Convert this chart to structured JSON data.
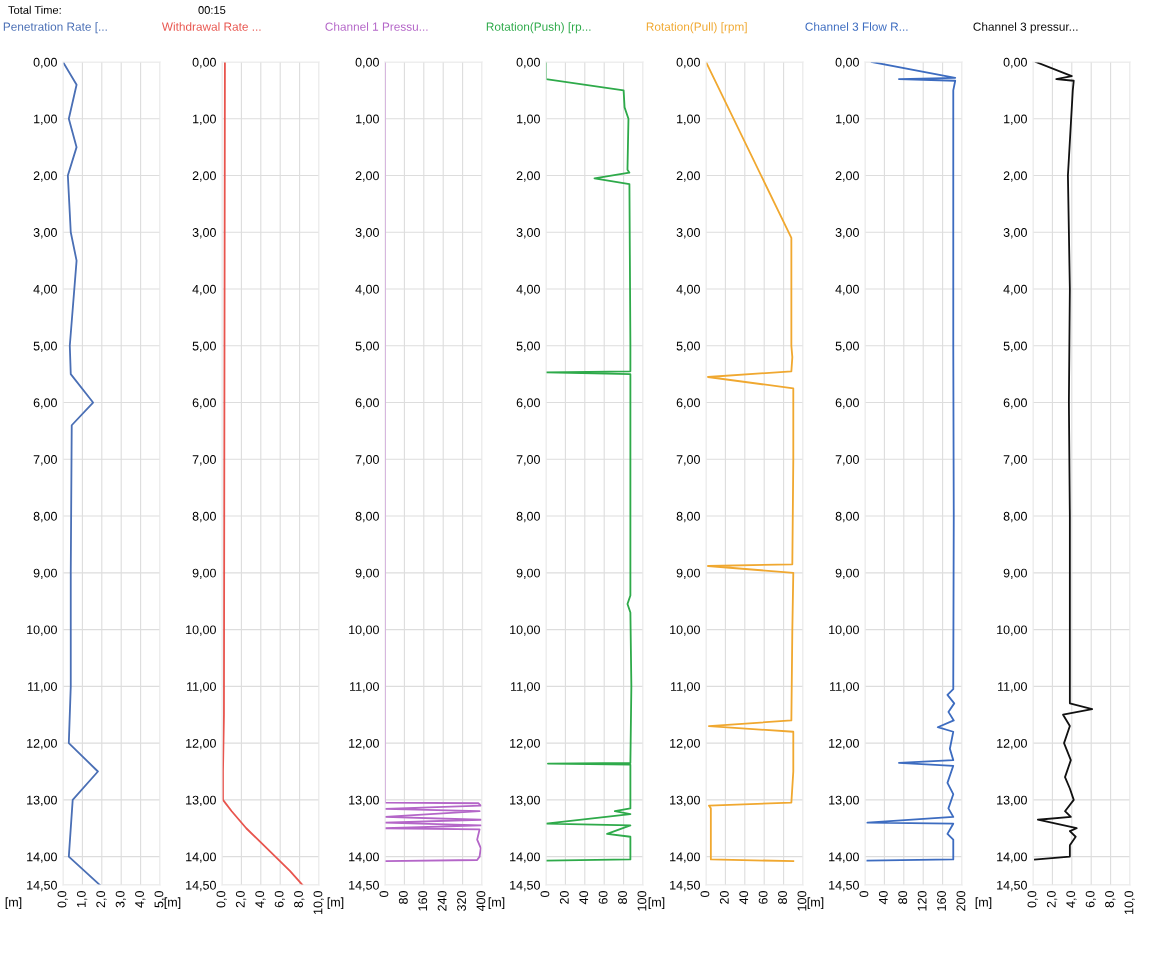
{
  "chart_data": [
    {
      "type": "line",
      "title": "Penetration Rate [...",
      "ylabel": "[m]",
      "annotations": [
        "Total Time:",
        "00:15"
      ],
      "grid": true,
      "marker": "none",
      "line_style": "solid",
      "xlim": [
        0,
        5
      ],
      "xticks": [
        {
          "value": 0,
          "label": "0,0"
        },
        {
          "value": 1,
          "label": "1,0"
        },
        {
          "value": 2,
          "label": "2,0"
        },
        {
          "value": 3,
          "label": "3,0"
        },
        {
          "value": 4,
          "label": "4,0"
        },
        {
          "value": 5,
          "label": "5,0"
        }
      ],
      "ylim": [
        14.5,
        0
      ],
      "yticks": [
        {
          "value": 0,
          "label": "0,00"
        },
        {
          "value": 1,
          "label": "1,00"
        },
        {
          "value": 2,
          "label": "2,00"
        },
        {
          "value": 3,
          "label": "3,00"
        },
        {
          "value": 4,
          "label": "4,00"
        },
        {
          "value": 5,
          "label": "5,00"
        },
        {
          "value": 6,
          "label": "6,00"
        },
        {
          "value": 7,
          "label": "7,00"
        },
        {
          "value": 8,
          "label": "8,00"
        },
        {
          "value": 9,
          "label": "9,00"
        },
        {
          "value": 10,
          "label": "10,00"
        },
        {
          "value": 11,
          "label": "11,00"
        },
        {
          "value": 12,
          "label": "12,00"
        },
        {
          "value": 13,
          "label": "13,00"
        },
        {
          "value": 14,
          "label": "14,00"
        },
        {
          "value": 14.5,
          "label": "14,50"
        }
      ],
      "series": [
        {
          "color": "#4a6fb5",
          "x": [
            0.0,
            0.7,
            0.3,
            0.7,
            0.25,
            0.4,
            0.7,
            0.35,
            0.4,
            1.55,
            0.45,
            0.4,
            0.4,
            0.3,
            1.8,
            0.5,
            0.3,
            1.9
          ],
          "values": [
            0,
            0.4,
            1.0,
            1.5,
            2.0,
            3.0,
            3.5,
            5.0,
            5.5,
            6.0,
            6.4,
            9.0,
            11.0,
            12.0,
            12.5,
            13.0,
            14.0,
            14.5
          ]
        }
      ]
    },
    {
      "type": "line",
      "title": "Withdrawal Rate ...",
      "ylabel": "[m]",
      "grid": true,
      "marker": "none",
      "line_style": "solid",
      "xlim": [
        0,
        10
      ],
      "xticks": [
        {
          "value": 0,
          "label": "0,0"
        },
        {
          "value": 2,
          "label": "2,0"
        },
        {
          "value": 4,
          "label": "4,0"
        },
        {
          "value": 6,
          "label": "6,0"
        },
        {
          "value": 8,
          "label": "8,0"
        },
        {
          "value": 10,
          "label": "10,0"
        }
      ],
      "ylim": [
        14.5,
        0
      ],
      "yticks": [
        {
          "value": 0,
          "label": "0,00"
        },
        {
          "value": 1,
          "label": "1,00"
        },
        {
          "value": 2,
          "label": "2,00"
        },
        {
          "value": 3,
          "label": "3,00"
        },
        {
          "value": 4,
          "label": "4,00"
        },
        {
          "value": 5,
          "label": "5,00"
        },
        {
          "value": 6,
          "label": "6,00"
        },
        {
          "value": 7,
          "label": "7,00"
        },
        {
          "value": 8,
          "label": "8,00"
        },
        {
          "value": 9,
          "label": "9,00"
        },
        {
          "value": 10,
          "label": "10,00"
        },
        {
          "value": 11,
          "label": "11,00"
        },
        {
          "value": 12,
          "label": "12,00"
        },
        {
          "value": 13,
          "label": "13,00"
        },
        {
          "value": 14,
          "label": "14,00"
        },
        {
          "value": 14.5,
          "label": "14,50"
        }
      ],
      "series": [
        {
          "color": "#e8554e",
          "x": [
            0.3,
            0.2,
            0.1,
            0.1,
            1.0,
            2.5,
            4.0,
            5.5,
            7.0,
            8.3
          ],
          "values": [
            0,
            11.5,
            12.5,
            13.0,
            13.2,
            13.5,
            13.75,
            14.0,
            14.25,
            14.5
          ]
        }
      ]
    },
    {
      "type": "line",
      "title": "Channel 1 Pressu...",
      "ylabel": "[m]",
      "grid": true,
      "marker": "none",
      "line_style": "solid",
      "xlim": [
        0,
        400
      ],
      "xticks": [
        0,
        80,
        160,
        240,
        320,
        400
      ],
      "ylim": [
        14.5,
        0
      ],
      "yticks": [
        {
          "value": 0,
          "label": "0,00"
        },
        {
          "value": 1,
          "label": "1,00"
        },
        {
          "value": 2,
          "label": "2,00"
        },
        {
          "value": 3,
          "label": "3,00"
        },
        {
          "value": 4,
          "label": "4,00"
        },
        {
          "value": 5,
          "label": "5,00"
        },
        {
          "value": 6,
          "label": "6,00"
        },
        {
          "value": 7,
          "label": "7,00"
        },
        {
          "value": 8,
          "label": "8,00"
        },
        {
          "value": 9,
          "label": "9,00"
        },
        {
          "value": 10,
          "label": "10,00"
        },
        {
          "value": 11,
          "label": "11,00"
        },
        {
          "value": 12,
          "label": "12,00"
        },
        {
          "value": 13,
          "label": "13,00"
        },
        {
          "value": 14,
          "label": "14,00"
        },
        {
          "value": 14.5,
          "label": "14,50"
        }
      ],
      "series": [
        {
          "color": "#b466c8",
          "x": [
            0,
            0,
            385,
            395,
            0,
            390,
            0,
            395,
            0,
            395,
            0,
            390,
            380,
            395,
            390,
            380,
            0
          ],
          "values": [
            0,
            13.05,
            13.06,
            13.1,
            13.16,
            13.2,
            13.3,
            13.35,
            13.4,
            13.45,
            13.5,
            13.52,
            13.7,
            13.85,
            14.0,
            14.06,
            14.08
          ]
        }
      ]
    },
    {
      "type": "line",
      "title": "Rotation(Push) [rp...",
      "ylabel": "[m]",
      "grid": true,
      "marker": "none",
      "line_style": "solid",
      "xlim": [
        0,
        100
      ],
      "xticks": [
        0,
        20,
        40,
        60,
        80,
        100
      ],
      "ylim": [
        14.5,
        0
      ],
      "yticks": [
        {
          "value": 0,
          "label": "0,00"
        },
        {
          "value": 1,
          "label": "1,00"
        },
        {
          "value": 2,
          "label": "2,00"
        },
        {
          "value": 3,
          "label": "3,00"
        },
        {
          "value": 4,
          "label": "4,00"
        },
        {
          "value": 5,
          "label": "5,00"
        },
        {
          "value": 6,
          "label": "6,00"
        },
        {
          "value": 7,
          "label": "7,00"
        },
        {
          "value": 8,
          "label": "8,00"
        },
        {
          "value": 9,
          "label": "9,00"
        },
        {
          "value": 10,
          "label": "10,00"
        },
        {
          "value": 11,
          "label": "11,00"
        },
        {
          "value": 12,
          "label": "12,00"
        },
        {
          "value": 13,
          "label": "13,00"
        },
        {
          "value": 14,
          "label": "14,00"
        },
        {
          "value": 14.5,
          "label": "14,50"
        }
      ],
      "series": [
        {
          "color": "#2eaa4a",
          "x": [
            0,
            0,
            80,
            81,
            85,
            84,
            86,
            50,
            86,
            87,
            87,
            0,
            87,
            87,
            84,
            87,
            88,
            87,
            2,
            87,
            87,
            71,
            87,
            0,
            87,
            63,
            87,
            87,
            0
          ],
          "values": [
            0,
            0.3,
            0.5,
            0.8,
            1.0,
            1.9,
            1.95,
            2.05,
            2.15,
            5.0,
            5.45,
            5.47,
            5.5,
            9.4,
            9.55,
            9.7,
            11.0,
            12.35,
            12.36,
            12.38,
            13.15,
            13.2,
            13.25,
            13.42,
            13.45,
            13.6,
            13.65,
            14.05,
            14.07
          ]
        }
      ]
    },
    {
      "type": "line",
      "title": "Rotation(Pull) [rpm]",
      "ylabel": "[m]",
      "grid": true,
      "marker": "none",
      "line_style": "solid",
      "xlim": [
        0,
        100
      ],
      "xticks": [
        0,
        20,
        40,
        60,
        80,
        100
      ],
      "ylim": [
        14.5,
        0
      ],
      "yticks": [
        {
          "value": 0,
          "label": "0,00"
        },
        {
          "value": 1,
          "label": "1,00"
        },
        {
          "value": 2,
          "label": "2,00"
        },
        {
          "value": 3,
          "label": "3,00"
        },
        {
          "value": 4,
          "label": "4,00"
        },
        {
          "value": 5,
          "label": "5,00"
        },
        {
          "value": 6,
          "label": "6,00"
        },
        {
          "value": 7,
          "label": "7,00"
        },
        {
          "value": 8,
          "label": "8,00"
        },
        {
          "value": 9,
          "label": "9,00"
        },
        {
          "value": 10,
          "label": "10,00"
        },
        {
          "value": 11,
          "label": "11,00"
        },
        {
          "value": 12,
          "label": "12,00"
        },
        {
          "value": 13,
          "label": "13,00"
        },
        {
          "value": 14,
          "label": "14,00"
        },
        {
          "value": 14.5,
          "label": "14,50"
        }
      ],
      "series": [
        {
          "color": "#f0a830",
          "x": [
            0,
            88,
            88,
            89,
            88,
            2,
            90,
            90,
            89,
            2,
            90,
            89,
            88,
            3,
            90,
            90,
            88,
            3,
            5,
            5,
            90
          ],
          "values": [
            0,
            3.1,
            5.0,
            5.2,
            5.45,
            5.55,
            5.75,
            7.0,
            8.85,
            8.88,
            9.0,
            10.0,
            11.6,
            11.7,
            11.8,
            12.5,
            13.05,
            13.1,
            13.15,
            14.05,
            14.08
          ]
        }
      ]
    },
    {
      "type": "line",
      "title": "Channel 3 Flow R...",
      "ylabel": "[m]",
      "grid": true,
      "marker": "none",
      "line_style": "solid",
      "xlim": [
        0,
        200
      ],
      "xticks": [
        0,
        40,
        80,
        120,
        160,
        200
      ],
      "ylim": [
        14.5,
        0
      ],
      "yticks": [
        {
          "value": 0,
          "label": "0,00"
        },
        {
          "value": 1,
          "label": "1,00"
        },
        {
          "value": 2,
          "label": "2,00"
        },
        {
          "value": 3,
          "label": "3,00"
        },
        {
          "value": 4,
          "label": "4,00"
        },
        {
          "value": 5,
          "label": "5,00"
        },
        {
          "value": 6,
          "label": "6,00"
        },
        {
          "value": 7,
          "label": "7,00"
        },
        {
          "value": 8,
          "label": "8,00"
        },
        {
          "value": 9,
          "label": "9,00"
        },
        {
          "value": 10,
          "label": "10,00"
        },
        {
          "value": 11,
          "label": "11,00"
        },
        {
          "value": 12,
          "label": "12,00"
        },
        {
          "value": 13,
          "label": "13,00"
        },
        {
          "value": 14,
          "label": "14,00"
        },
        {
          "value": 14.5,
          "label": "14,50"
        }
      ],
      "series": [
        {
          "color": "#3d6cc0",
          "x": [
            14,
            186,
            70,
            186,
            182,
            182,
            183,
            182,
            182,
            170,
            184,
            172,
            183,
            150,
            182,
            175,
            182,
            70,
            182,
            170,
            182,
            172,
            182,
            5,
            182,
            170,
            182,
            182,
            5
          ],
          "values": [
            0,
            0.28,
            0.3,
            0.33,
            0.5,
            5.0,
            8.0,
            10.9,
            11.05,
            11.15,
            11.3,
            11.45,
            11.6,
            11.72,
            11.8,
            12.1,
            12.3,
            12.35,
            12.4,
            12.7,
            12.9,
            13.15,
            13.3,
            13.4,
            13.42,
            13.6,
            13.7,
            14.05,
            14.07
          ]
        }
      ]
    },
    {
      "type": "line",
      "title": "Channel 3 pressur...",
      "ylabel": "[m]",
      "grid": true,
      "marker": "none",
      "line_style": "solid",
      "xlim": [
        0,
        10
      ],
      "xticks": [
        {
          "value": 0,
          "label": "0,0"
        },
        {
          "value": 2,
          "label": "2,0"
        },
        {
          "value": 4,
          "label": "4,0"
        },
        {
          "value": 6,
          "label": "6,0"
        },
        {
          "value": 8,
          "label": "8,0"
        },
        {
          "value": 10,
          "label": "10,0"
        }
      ],
      "ylim": [
        14.5,
        0
      ],
      "yticks": [
        {
          "value": 0,
          "label": "0,00"
        },
        {
          "value": 1,
          "label": "1,00"
        },
        {
          "value": 2,
          "label": "2,00"
        },
        {
          "value": 3,
          "label": "3,00"
        },
        {
          "value": 4,
          "label": "4,00"
        },
        {
          "value": 5,
          "label": "5,00"
        },
        {
          "value": 6,
          "label": "6,00"
        },
        {
          "value": 7,
          "label": "7,00"
        },
        {
          "value": 8,
          "label": "8,00"
        },
        {
          "value": 9,
          "label": "9,00"
        },
        {
          "value": 10,
          "label": "10,00"
        },
        {
          "value": 11,
          "label": "11,00"
        },
        {
          "value": 12,
          "label": "12,00"
        },
        {
          "value": 13,
          "label": "13,00"
        },
        {
          "value": 14,
          "label": "14,00"
        },
        {
          "value": 14.5,
          "label": "14,50"
        }
      ],
      "series": [
        {
          "color": "#111111",
          "x": [
            0.3,
            4.0,
            2.4,
            4.2,
            4.1,
            3.6,
            3.8,
            3.7,
            3.8,
            3.8,
            3.8,
            6.1,
            3.1,
            3.8,
            3.2,
            3.9,
            3.3,
            3.8,
            4.2,
            3.3,
            3.9,
            0.5,
            4.5,
            3.8,
            4.4,
            3.8,
            3.8,
            0.2
          ],
          "values": [
            0,
            0.25,
            0.3,
            0.33,
            0.5,
            2.0,
            4.0,
            6.0,
            8.0,
            10.0,
            11.3,
            11.4,
            11.5,
            11.7,
            12.0,
            12.3,
            12.6,
            12.8,
            13.0,
            13.2,
            13.3,
            13.35,
            13.5,
            13.55,
            13.65,
            13.8,
            14.0,
            14.05
          ]
        }
      ]
    }
  ]
}
